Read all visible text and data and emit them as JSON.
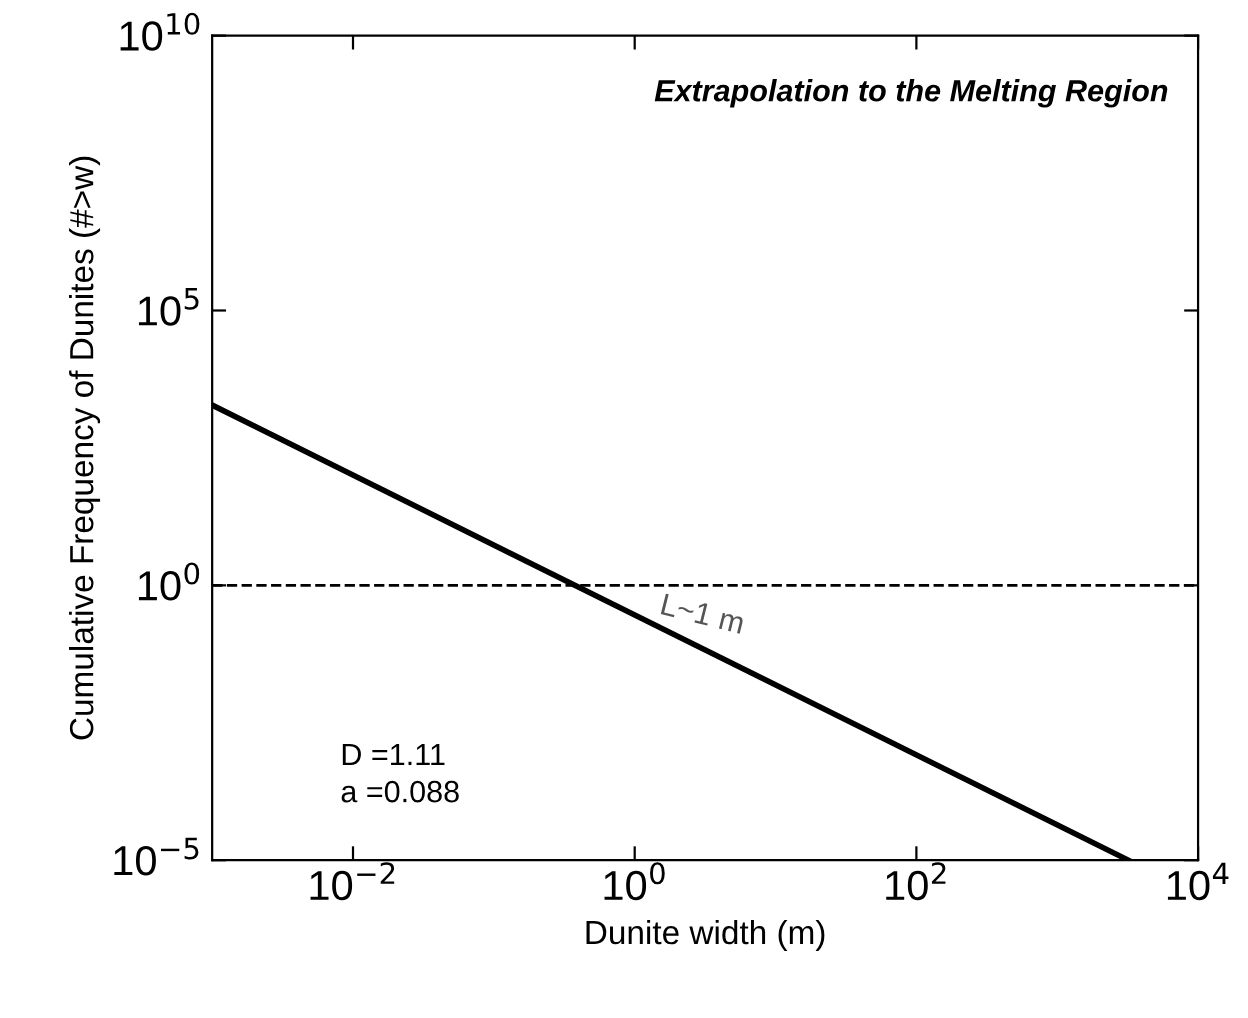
{
  "chart_data": {
    "type": "line",
    "xlabel": "Dunite width (m)",
    "ylabel": "Cumulative Frequency of Dunites (#>w)",
    "log": "xy",
    "xlim": [
      0.001,
      10000
    ],
    "ylim": [
      1e-05,
      10000000000
    ],
    "xticks": [
      {
        "value": 0.01,
        "label": "10$^{−2}$"
      },
      {
        "value": 1,
        "label": "10$^{0}$"
      },
      {
        "value": 100,
        "label": "10$^{2}$"
      },
      {
        "value": 10000,
        "label": "10$^{4}$"
      }
    ],
    "yticks": [
      {
        "value": 1e-05,
        "label": "10$^{−5}$"
      },
      {
        "value": 1,
        "label": "10$^{0}$"
      },
      {
        "value": 100000,
        "label": "10$^{5}$"
      },
      {
        "value": 10000000000,
        "label": "10$^{10}$"
      }
    ],
    "series": [
      {
        "color": "#000000",
        "x": [
          0.001,
          3200
        ],
        "values": [
          1900,
          1e-05
        ]
      }
    ],
    "ref_lines": [
      {
        "axis": "y",
        "value": 1,
        "label": null,
        "color": "#000000",
        "line_style": "dashed"
      }
    ],
    "annotations": [
      "Extrapolation to the Melting Region",
      {
        "text": "L~1 m",
        "x": 3,
        "y": 0.1
      },
      "D =1.11",
      "a =0.088"
    ],
    "grid": false,
    "marker": "none",
    "line_style": "solid"
  }
}
